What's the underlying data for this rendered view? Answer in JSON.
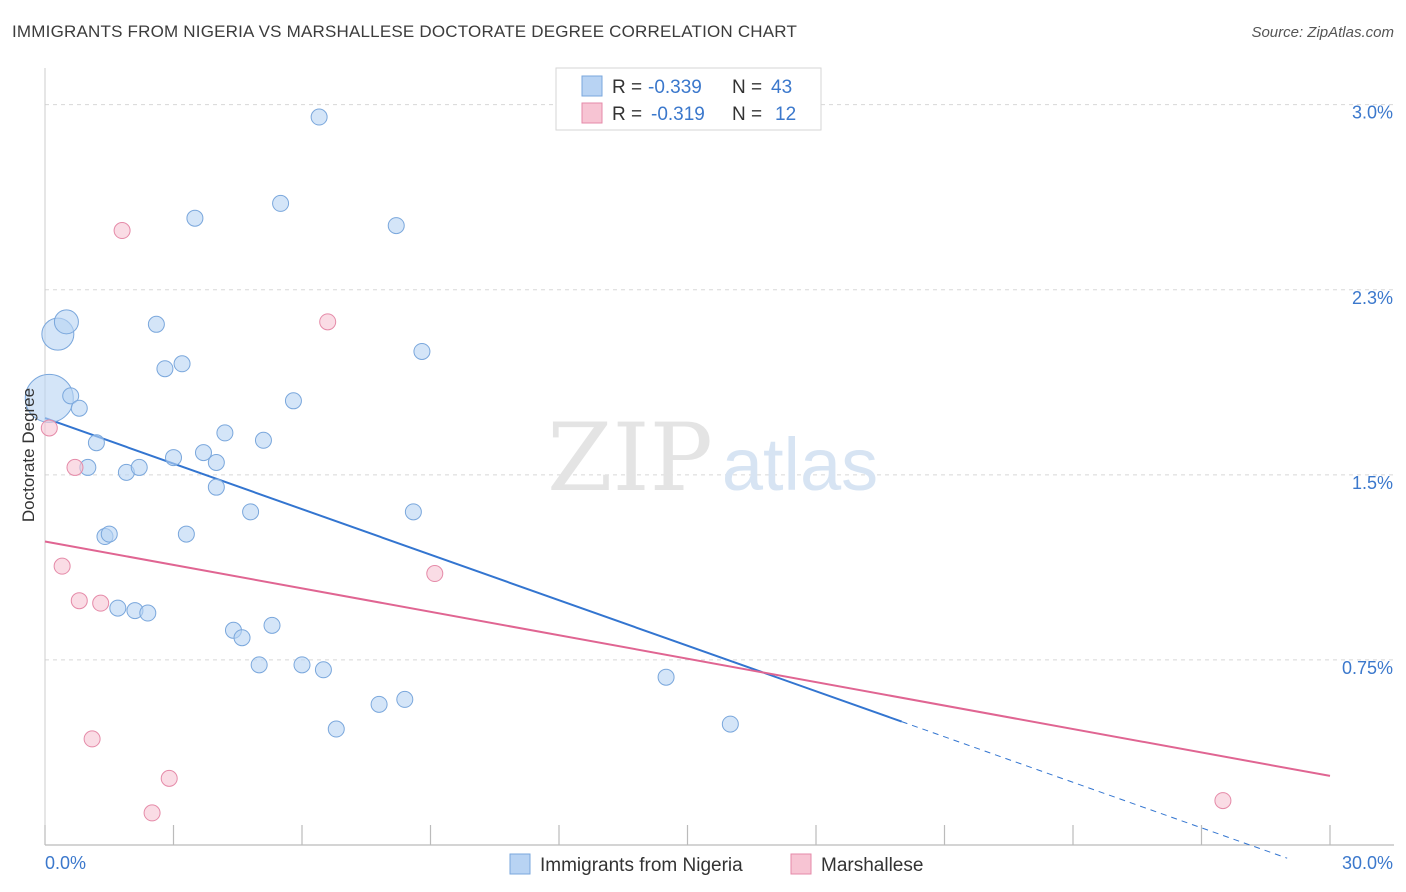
{
  "title": "IMMIGRANTS FROM NIGERIA VS MARSHALLESE DOCTORATE DEGREE CORRELATION CHART",
  "source": "Source: ZipAtlas.com",
  "watermark": {
    "zip": "ZIP",
    "atlas": "atlas"
  },
  "legend_top": [
    {
      "r_label": "R =",
      "r_value": "-0.339",
      "n_label": "N =",
      "n_value": "43"
    },
    {
      "r_label": "R =",
      "r_value": "-0.319",
      "n_label": "N =",
      "n_value": "12"
    }
  ],
  "legend_bottom": [
    "Immigrants from Nigeria",
    "Marshallese"
  ],
  "colors": {
    "nigeria_fill": "#b8d3f3",
    "nigeria_stroke": "#7aa7dc",
    "nigeria_line": "#3375d0",
    "marsh_fill": "#f7c4d3",
    "marsh_stroke": "#e58aa8",
    "marsh_line": "#e06592",
    "value_text": "#3b78cc",
    "grid": "#d8d8d8"
  },
  "chart_data": {
    "type": "scatter",
    "xlabel": "",
    "ylabel": "Doctorate Degree",
    "xlim": [
      0,
      30
    ],
    "ylim": [
      0,
      3.1
    ],
    "x_tick_labels": [
      {
        "value": 0,
        "label": "0.0%"
      },
      {
        "value": 30,
        "label": "30.0%"
      }
    ],
    "y_tick_labels": [
      {
        "value": 0.75,
        "label": "0.75%"
      },
      {
        "value": 1.5,
        "label": "1.5%"
      },
      {
        "value": 2.25,
        "label": "2.3%"
      },
      {
        "value": 3.0,
        "label": "3.0%"
      }
    ],
    "grid": true,
    "legend_position": "top-center",
    "series": [
      {
        "name": "Immigrants from Nigeria",
        "points": [
          {
            "x": 0.1,
            "y": 1.81,
            "s": 3
          },
          {
            "x": 0.3,
            "y": 2.07,
            "s": 2
          },
          {
            "x": 0.5,
            "y": 2.12,
            "s": 1.5
          },
          {
            "x": 0.6,
            "y": 1.82,
            "s": 1
          },
          {
            "x": 0.8,
            "y": 1.77,
            "s": 1
          },
          {
            "x": 1.0,
            "y": 1.53,
            "s": 1
          },
          {
            "x": 1.2,
            "y": 1.63,
            "s": 1
          },
          {
            "x": 1.4,
            "y": 1.25,
            "s": 1
          },
          {
            "x": 1.5,
            "y": 1.26,
            "s": 1
          },
          {
            "x": 1.7,
            "y": 0.96,
            "s": 1
          },
          {
            "x": 1.9,
            "y": 1.51,
            "s": 1
          },
          {
            "x": 2.1,
            "y": 0.95,
            "s": 1
          },
          {
            "x": 2.2,
            "y": 1.53,
            "s": 1
          },
          {
            "x": 2.4,
            "y": 0.94,
            "s": 1
          },
          {
            "x": 2.6,
            "y": 2.11,
            "s": 1
          },
          {
            "x": 2.8,
            "y": 1.93,
            "s": 1
          },
          {
            "x": 3.0,
            "y": 1.57,
            "s": 1
          },
          {
            "x": 3.2,
            "y": 1.95,
            "s": 1
          },
          {
            "x": 3.3,
            "y": 1.26,
            "s": 1
          },
          {
            "x": 3.5,
            "y": 2.54,
            "s": 1
          },
          {
            "x": 3.7,
            "y": 1.59,
            "s": 1
          },
          {
            "x": 4.0,
            "y": 1.55,
            "s": 1
          },
          {
            "x": 4.0,
            "y": 1.45,
            "s": 1
          },
          {
            "x": 4.2,
            "y": 1.67,
            "s": 1
          },
          {
            "x": 4.4,
            "y": 0.87,
            "s": 1
          },
          {
            "x": 4.6,
            "y": 0.84,
            "s": 1
          },
          {
            "x": 4.8,
            "y": 1.35,
            "s": 1
          },
          {
            "x": 5.0,
            "y": 0.73,
            "s": 1
          },
          {
            "x": 5.1,
            "y": 1.64,
            "s": 1
          },
          {
            "x": 5.3,
            "y": 0.89,
            "s": 1
          },
          {
            "x": 5.5,
            "y": 2.6,
            "s": 1
          },
          {
            "x": 5.8,
            "y": 1.8,
            "s": 1
          },
          {
            "x": 6.0,
            "y": 0.73,
            "s": 1
          },
          {
            "x": 6.4,
            "y": 2.95,
            "s": 1
          },
          {
            "x": 6.5,
            "y": 0.71,
            "s": 1
          },
          {
            "x": 6.8,
            "y": 0.47,
            "s": 1
          },
          {
            "x": 7.8,
            "y": 0.57,
            "s": 1
          },
          {
            "x": 8.2,
            "y": 2.51,
            "s": 1
          },
          {
            "x": 8.4,
            "y": 0.59,
            "s": 1
          },
          {
            "x": 8.6,
            "y": 1.35,
            "s": 1
          },
          {
            "x": 8.8,
            "y": 2.0,
            "s": 1
          },
          {
            "x": 14.5,
            "y": 0.68,
            "s": 1
          },
          {
            "x": 16.0,
            "y": 0.49,
            "s": 1
          }
        ],
        "trend": {
          "x0": 0,
          "y0": 1.73,
          "x1": 20.0,
          "y1": 0.5,
          "dash_to_x": 29.0
        }
      },
      {
        "name": "Marshallese",
        "points": [
          {
            "x": 0.1,
            "y": 1.69,
            "s": 1
          },
          {
            "x": 0.4,
            "y": 1.13,
            "s": 1
          },
          {
            "x": 0.7,
            "y": 1.53,
            "s": 1
          },
          {
            "x": 0.8,
            "y": 0.99,
            "s": 1
          },
          {
            "x": 1.1,
            "y": 0.43,
            "s": 1
          },
          {
            "x": 1.3,
            "y": 0.98,
            "s": 1
          },
          {
            "x": 1.8,
            "y": 2.49,
            "s": 1
          },
          {
            "x": 2.5,
            "y": 0.13,
            "s": 1
          },
          {
            "x": 2.9,
            "y": 0.27,
            "s": 1
          },
          {
            "x": 6.6,
            "y": 2.12,
            "s": 1
          },
          {
            "x": 9.1,
            "y": 1.1,
            "s": 1
          },
          {
            "x": 27.5,
            "y": 0.18,
            "s": 1
          }
        ],
        "trend": {
          "x0": 0,
          "y0": 1.23,
          "x1": 30,
          "y1": 0.28
        }
      }
    ]
  }
}
